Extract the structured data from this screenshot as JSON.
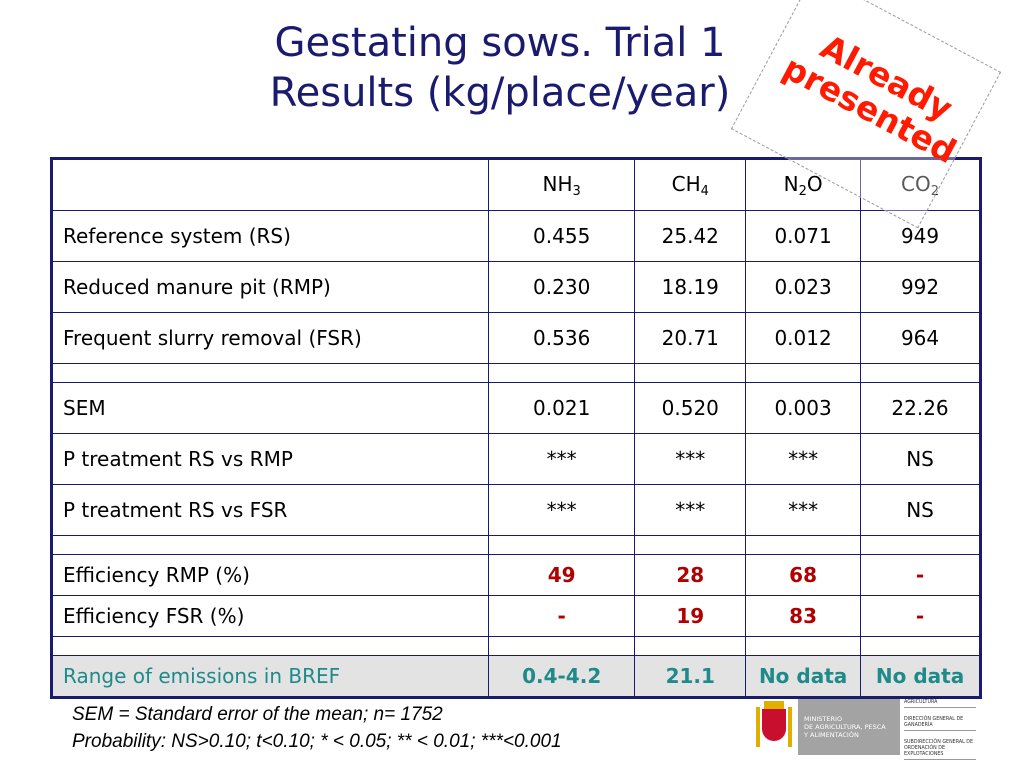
{
  "title": {
    "line1": "Gestating sows. Trial 1",
    "line2": "Results (kg/place/year)"
  },
  "stamp": {
    "line1": "Already",
    "line2": "presented"
  },
  "table": {
    "headers": [
      "",
      {
        "base": "NH",
        "sub": "3",
        "tail": ""
      },
      {
        "base": "CH",
        "sub": "4",
        "tail": ""
      },
      {
        "base": "N",
        "sub": "2",
        "tail": "O"
      },
      {
        "base": "CO",
        "sub": "2",
        "tail": ""
      }
    ],
    "results": [
      {
        "label": "Reference system (RS)",
        "values": [
          "0.455",
          "25.42",
          "0.071",
          "949"
        ]
      },
      {
        "label": "Reduced manure pit (RMP)",
        "values": [
          "0.230",
          "18.19",
          "0.023",
          "992"
        ]
      },
      {
        "label": "Frequent slurry removal (FSR)",
        "values": [
          "0.536",
          "20.71",
          "0.012",
          "964"
        ]
      }
    ],
    "stats": [
      {
        "label": "SEM",
        "values": [
          "0.021",
          "0.520",
          "0.003",
          "22.26"
        ]
      },
      {
        "label": "P treatment RS vs RMP",
        "values": [
          "***",
          "***",
          "***",
          "NS"
        ]
      },
      {
        "label": "P treatment RS vs FSR",
        "values": [
          "***",
          "***",
          "***",
          "NS"
        ]
      }
    ],
    "efficiency": [
      {
        "label": "Efficiency RMP (%)",
        "values": [
          "49",
          "28",
          "68",
          "-"
        ]
      },
      {
        "label": "Efficiency FSR (%)",
        "values": [
          "-",
          "19",
          "83",
          "-"
        ]
      }
    ],
    "bref": {
      "label": "Range of emissions in BREF",
      "values": [
        "0.4-4.2",
        "21.1",
        "No data",
        "No data"
      ]
    }
  },
  "footnote": {
    "line1": "SEM = Standard error of the mean; n= 1752",
    "line2": "Probability: NS>0.10; t<0.10; * < 0.05; ** < 0.01; ***<0.001"
  },
  "logo": {
    "ministry": [
      "MINISTERIO",
      "DE AGRICULTURA, PESCA",
      "Y ALIMENTACIÓN"
    ],
    "units": [
      "SECRETARÍA GENERAL DE AGRICULTURA",
      "DIRECCIÓN GENERAL DE GANADERÍA",
      "SUBDIRECCIÓN GENERAL DE ORDENACIÓN DE EXPLOTACIONES"
    ]
  }
}
